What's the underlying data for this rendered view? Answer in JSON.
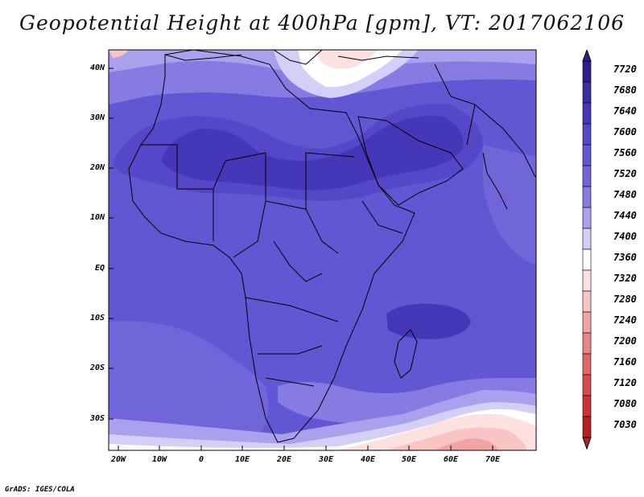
{
  "title": "Geopotential Height at 400hPa [gpm], VT: 2017062106",
  "credit": "GrADS: IGES/COLA",
  "lat_labels": [
    "40N",
    "30N",
    "20N",
    "10N",
    "EQ",
    "10S",
    "20S",
    "30S"
  ],
  "lon_labels": [
    "20W",
    "10W",
    "0",
    "10E",
    "20E",
    "30E",
    "40E",
    "50E",
    "60E",
    "70E"
  ],
  "legend": {
    "levels": [
      "7720",
      "7680",
      "7640",
      "7600",
      "7560",
      "7520",
      "7480",
      "7440",
      "7400",
      "7360",
      "7320",
      "7280",
      "7240",
      "7200",
      "7160",
      "7120",
      "7080",
      "7030"
    ],
    "colors": [
      "#2e1f8f",
      "#3a2ea6",
      "#4538b8",
      "#5548c8",
      "#6257d3",
      "#7066da",
      "#857be2",
      "#a9a1ee",
      "#d3d0f7",
      "#ffffff",
      "#fde0e0",
      "#f9c4c4",
      "#f2a3a3",
      "#ea8585",
      "#e06666",
      "#d84a4a",
      "#cc3333",
      "#b52020"
    ]
  },
  "map_data": {
    "variable": "Geopotential Height",
    "level": "400hPa",
    "units": "gpm",
    "valid_time": "2017062106",
    "lon_range": [
      -22,
      80
    ],
    "lat_range": [
      -37,
      45
    ]
  }
}
